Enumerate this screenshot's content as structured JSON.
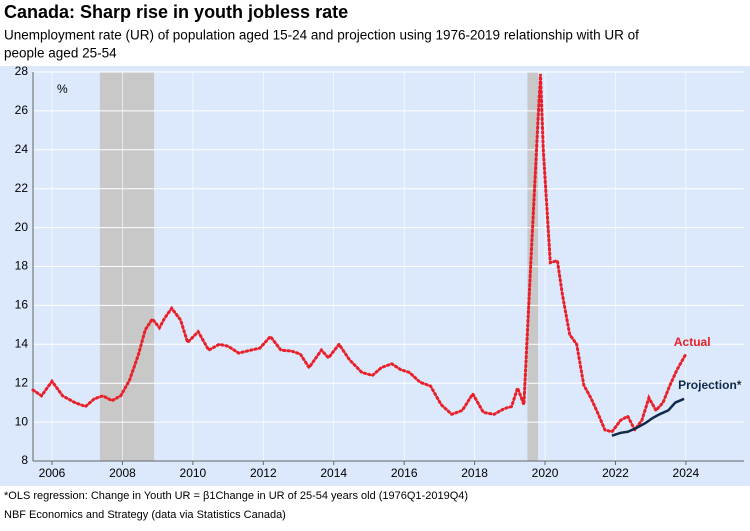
{
  "chart_data": {
    "type": "line",
    "title": "Canada: Sharp rise in youth jobless rate",
    "subtitle": [
      "Unemployment rate (UR) of population aged 15-24 and projection using 1976-2019 relationship with UR of",
      "people aged 25-54"
    ],
    "y_unit": "%",
    "footnotes": [
      "*OLS regression: Change in Youth UR = β1Change in UR of 25-54 years old (1976Q1-2019Q4)",
      "NBF Economics and Strategy (data via Statistics Canada)"
    ],
    "xlim": [
      2005.96,
      2026.15
    ],
    "xticks": [
      {
        "value": 2006.5,
        "label": "2006"
      },
      {
        "value": 2008.5,
        "label": "2008"
      },
      {
        "value": 2010.5,
        "label": "2010"
      },
      {
        "value": 2012.5,
        "label": "2012"
      },
      {
        "value": 2014.5,
        "label": "2014"
      },
      {
        "value": 2016.5,
        "label": "2016"
      },
      {
        "value": 2018.5,
        "label": "2018"
      },
      {
        "value": 2020.5,
        "label": "2020"
      },
      {
        "value": 2022.5,
        "label": "2022"
      },
      {
        "value": 2024.5,
        "label": "2024"
      }
    ],
    "ylim": [
      8,
      28
    ],
    "yticks": [
      8,
      10,
      12,
      14,
      16,
      18,
      20,
      22,
      24,
      26,
      28
    ],
    "grid": true,
    "shaded_periods": [
      [
        2007.86,
        2009.4
      ],
      [
        2020.0,
        2020.3
      ]
    ],
    "series": [
      {
        "name": "Actual",
        "color": "#e8202a",
        "style": "dotted",
        "x": [
          2005.96,
          2006.2,
          2006.5,
          2006.8,
          2007.15,
          2007.45,
          2007.7,
          2007.95,
          2008.2,
          2008.45,
          2008.7,
          2008.95,
          2009.15,
          2009.35,
          2009.55,
          2009.7,
          2009.9,
          2010.15,
          2010.35,
          2010.65,
          2010.95,
          2011.25,
          2011.5,
          2011.8,
          2012.15,
          2012.4,
          2012.7,
          2013.0,
          2013.3,
          2013.55,
          2013.8,
          2014.15,
          2014.35,
          2014.65,
          2014.95,
          2015.3,
          2015.6,
          2015.85,
          2016.15,
          2016.4,
          2016.65,
          2016.95,
          2017.25,
          2017.55,
          2017.85,
          2018.15,
          2018.45,
          2018.75,
          2019.05,
          2019.35,
          2019.55,
          2019.72,
          2019.9,
          2020.1,
          2020.3,
          2020.37,
          2020.45,
          2020.65,
          2020.85,
          2021.0,
          2021.2,
          2021.4,
          2021.6,
          2021.8,
          2022.0,
          2022.2,
          2022.4,
          2022.65,
          2022.85,
          2023.05,
          2023.25,
          2023.45,
          2023.65,
          2023.85,
          2024.05,
          2024.25,
          2024.5
        ],
        "values": [
          11.65,
          11.35,
          12.1,
          11.35,
          11.0,
          10.8,
          11.2,
          11.35,
          11.1,
          11.35,
          12.15,
          13.45,
          14.75,
          15.3,
          14.85,
          15.35,
          15.85,
          15.25,
          14.1,
          14.65,
          13.7,
          14.0,
          13.9,
          13.55,
          13.7,
          13.8,
          14.4,
          13.7,
          13.65,
          13.5,
          12.8,
          13.7,
          13.3,
          14.0,
          13.2,
          12.55,
          12.4,
          12.8,
          13.0,
          12.7,
          12.55,
          12.05,
          11.85,
          10.9,
          10.4,
          10.6,
          11.45,
          10.5,
          10.4,
          10.7,
          10.8,
          11.75,
          10.9,
          18.3,
          25.5,
          27.9,
          24.0,
          18.2,
          18.3,
          16.5,
          14.5,
          14.0,
          11.9,
          11.25,
          10.45,
          9.6,
          9.5,
          10.1,
          10.3,
          9.6,
          10.1,
          11.25,
          10.6,
          11.0,
          11.9,
          12.7,
          13.5
        ]
      },
      {
        "name": "Projection*",
        "color": "#0f2a4a",
        "style": "solid",
        "x": [
          2022.4,
          2022.65,
          2022.85,
          2023.1,
          2023.35,
          2023.55,
          2023.75,
          2024.0,
          2024.2,
          2024.45
        ],
        "values": [
          9.3,
          9.45,
          9.5,
          9.7,
          9.95,
          10.2,
          10.4,
          10.6,
          11.0,
          11.2
        ]
      }
    ]
  }
}
